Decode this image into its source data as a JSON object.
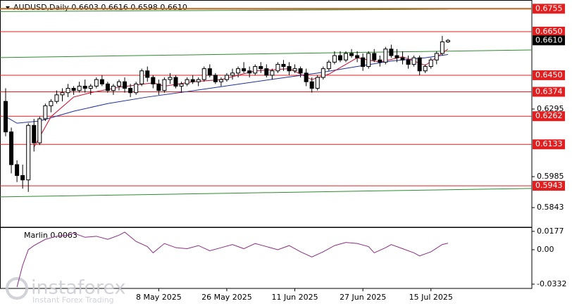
{
  "chart_data": [
    {
      "type": "candlestick",
      "title": "AUDUSD,Daily  0.6603 0.6616 0.6598 0.6610",
      "categories": [
        null,
        null,
        null,
        null,
        null,
        null,
        null,
        null,
        null,
        null,
        null,
        null,
        null,
        null,
        null,
        null,
        null,
        null,
        null,
        null,
        null,
        null,
        null,
        null,
        null,
        null,
        null,
        "8 May 2025",
        null,
        null,
        null,
        null,
        null,
        null,
        null,
        null,
        null,
        null,
        null,
        "26 May 2025",
        null,
        null,
        null,
        null,
        null,
        null,
        null,
        null,
        null,
        null,
        null,
        "11 Jun 2025",
        null,
        null,
        null,
        null,
        null,
        null,
        null,
        null,
        null,
        null,
        null,
        "27 Jun 2025",
        null,
        null,
        null,
        null,
        null,
        null,
        null,
        null,
        null,
        null,
        null,
        "15 Jul 2025",
        null,
        null,
        null
      ],
      "open": [
        0.633,
        0.619,
        0.604,
        0.599,
        0.597,
        0.622,
        0.614,
        0.625,
        0.631,
        0.633,
        0.636,
        0.637,
        0.639,
        0.638,
        0.64,
        0.639,
        0.64,
        0.643,
        0.641,
        0.638,
        0.64,
        0.642,
        0.639,
        0.637,
        0.641,
        0.647,
        0.644,
        0.641,
        0.638,
        0.643,
        0.644,
        0.64,
        0.641,
        0.643,
        0.642,
        0.643,
        0.648,
        0.645,
        0.642,
        0.643,
        0.645,
        0.646,
        0.648,
        0.647,
        0.646,
        0.649,
        0.648,
        0.645,
        0.647,
        0.65,
        0.649,
        0.647,
        0.648,
        0.646,
        0.642,
        0.639,
        0.644,
        0.648,
        0.651,
        0.654,
        0.652,
        0.655,
        0.654,
        0.653,
        0.649,
        0.655,
        0.652,
        0.651,
        0.657,
        0.654,
        0.653,
        0.652,
        0.65,
        0.653,
        0.647,
        0.649,
        0.652,
        0.655,
        0.6603
      ],
      "high": [
        0.639,
        0.621,
        0.606,
        0.604,
        0.623,
        0.625,
        0.626,
        0.632,
        0.634,
        0.638,
        0.639,
        0.641,
        0.64,
        0.642,
        0.643,
        0.641,
        0.644,
        0.645,
        0.642,
        0.641,
        0.643,
        0.644,
        0.641,
        0.642,
        0.648,
        0.649,
        0.645,
        0.643,
        0.644,
        0.646,
        0.645,
        0.642,
        0.644,
        0.645,
        0.644,
        0.649,
        0.65,
        0.646,
        0.644,
        0.646,
        0.648,
        0.649,
        0.651,
        0.649,
        0.65,
        0.651,
        0.65,
        0.648,
        0.651,
        0.652,
        0.651,
        0.65,
        0.649,
        0.648,
        0.644,
        0.645,
        0.649,
        0.652,
        0.656,
        0.656,
        0.656,
        0.657,
        0.656,
        0.655,
        0.656,
        0.657,
        0.654,
        0.658,
        0.659,
        0.657,
        0.656,
        0.654,
        0.654,
        0.654,
        0.65,
        0.653,
        0.656,
        0.663,
        0.6616
      ],
      "low": [
        0.617,
        0.6,
        0.596,
        0.593,
        0.5915,
        0.61,
        0.613,
        0.624,
        0.628,
        0.632,
        0.633,
        0.635,
        0.636,
        0.637,
        0.637,
        0.636,
        0.639,
        0.64,
        0.637,
        0.636,
        0.638,
        0.637,
        0.635,
        0.636,
        0.64,
        0.642,
        0.639,
        0.636,
        0.637,
        0.641,
        0.639,
        0.637,
        0.64,
        0.641,
        0.64,
        0.642,
        0.644,
        0.641,
        0.64,
        0.642,
        0.643,
        0.644,
        0.646,
        0.644,
        0.645,
        0.646,
        0.644,
        0.643,
        0.646,
        0.647,
        0.645,
        0.646,
        0.644,
        0.64,
        0.637,
        0.638,
        0.643,
        0.647,
        0.65,
        0.651,
        0.651,
        0.653,
        0.651,
        0.647,
        0.648,
        0.651,
        0.649,
        0.65,
        0.653,
        0.651,
        0.65,
        0.648,
        0.649,
        0.645,
        0.646,
        0.648,
        0.65,
        0.654,
        0.6598
      ],
      "close": [
        0.619,
        0.604,
        0.599,
        0.597,
        0.622,
        0.614,
        0.625,
        0.631,
        0.633,
        0.636,
        0.637,
        0.639,
        0.638,
        0.64,
        0.639,
        0.64,
        0.643,
        0.641,
        0.638,
        0.64,
        0.642,
        0.639,
        0.637,
        0.641,
        0.647,
        0.644,
        0.641,
        0.638,
        0.643,
        0.644,
        0.64,
        0.641,
        0.643,
        0.642,
        0.643,
        0.648,
        0.645,
        0.642,
        0.643,
        0.645,
        0.646,
        0.648,
        0.647,
        0.646,
        0.649,
        0.648,
        0.645,
        0.647,
        0.65,
        0.649,
        0.647,
        0.648,
        0.646,
        0.642,
        0.639,
        0.644,
        0.648,
        0.651,
        0.654,
        0.652,
        0.655,
        0.654,
        0.653,
        0.649,
        0.655,
        0.652,
        0.651,
        0.657,
        0.654,
        0.653,
        0.652,
        0.65,
        0.653,
        0.647,
        0.649,
        0.652,
        0.655,
        0.6603,
        0.661
      ],
      "ylim": [
        0.5753,
        0.6795
      ],
      "yticks": [
        0.6295,
        0.5985,
        0.5843
      ],
      "last_price": {
        "value": 0.661,
        "label": "0.6610"
      },
      "levels": [
        {
          "value": 0.6755,
          "color": "#b5651d"
        },
        {
          "value": {
            "value": 0.665,
            "label": "0.6650"
          },
          "color": "#e02020"
        },
        {
          "value": {
            "value": 0.645,
            "label": "0.6450"
          },
          "color": "#e02020"
        },
        {
          "value": 0.6374,
          "color": "#e02020"
        },
        {
          "value": 0.6262,
          "color": "#e02020"
        },
        {
          "value": 0.6133,
          "color": "#e02020"
        },
        {
          "value": 0.5943,
          "color": "#e02020"
        }
      ],
      "trendlines": [
        {
          "x": [
            -1,
            78
          ],
          "values": [
            0.6742,
            0.6753
          ],
          "color": "#2e8b2e"
        },
        {
          "x": [
            -1,
            93
          ],
          "values": [
            0.6531,
            0.6566
          ],
          "color": "#2e8b2e"
        },
        {
          "x": [
            -1,
            93
          ],
          "values": [
            0.5892,
            0.5931
          ],
          "color": "#2e8b2e"
        }
      ],
      "overlays": [
        {
          "x": [
            0,
            2,
            6,
            12,
            18,
            25,
            32,
            40,
            48,
            55,
            62,
            68,
            74,
            78
          ],
          "values": [
            0.626,
            0.623,
            0.624,
            0.6285,
            0.632,
            0.635,
            0.6375,
            0.6405,
            0.6435,
            0.646,
            0.649,
            0.6515,
            0.653,
            0.6545
          ],
          "color": "#1f2f9e"
        },
        {
          "x": [
            5,
            8,
            12,
            15,
            20,
            26,
            28,
            33,
            38,
            44,
            50,
            54,
            57,
            62,
            66,
            70,
            74,
            78
          ],
          "values": [
            0.612,
            0.626,
            0.635,
            0.637,
            0.6395,
            0.6415,
            0.64,
            0.642,
            0.643,
            0.647,
            0.648,
            0.643,
            0.6455,
            0.653,
            0.651,
            0.6535,
            0.6495,
            0.657
          ],
          "color": "#c8102e"
        }
      ]
    },
    {
      "type": "line",
      "label": "Marlin 0.0063",
      "x": [
        2,
        3,
        4,
        5,
        7,
        9,
        11,
        12,
        14,
        16,
        18,
        20,
        21,
        23,
        25,
        26,
        28,
        30,
        32,
        34,
        36,
        38,
        40,
        42,
        44,
        46,
        48,
        50,
        52,
        54,
        56,
        58,
        60,
        62,
        64,
        65,
        67,
        68,
        70,
        72,
        73,
        75,
        77,
        78
      ],
      "values": [
        -0.036,
        -0.015,
        0.0,
        0.004,
        0.01,
        0.013,
        0.014,
        0.016,
        0.012,
        0.013,
        0.01,
        0.014,
        0.017,
        0.008,
        0.003,
        -0.003,
        0.006,
        0.002,
        0.001,
        0.004,
        -0.001,
        0.002,
        0.005,
        0.001,
        0.006,
        0.003,
        0.0,
        0.004,
        -0.002,
        -0.007,
        -0.002,
        0.004,
        0.007,
        0.006,
        0.003,
        -0.003,
        0.002,
        0.005,
        0.001,
        -0.003,
        -0.006,
        -0.002,
        0.005,
        0.0063
      ],
      "color": "#8b2d82",
      "ylim": [
        -0.0373,
        0.0217
      ],
      "yticks": [
        0.0177,
        {
          "value": 0,
          "label": "0.00"
        },
        -0.0332
      ]
    }
  ],
  "watermark": {
    "brand": "instaforex",
    "tagline": "Instant Forex Trading"
  }
}
